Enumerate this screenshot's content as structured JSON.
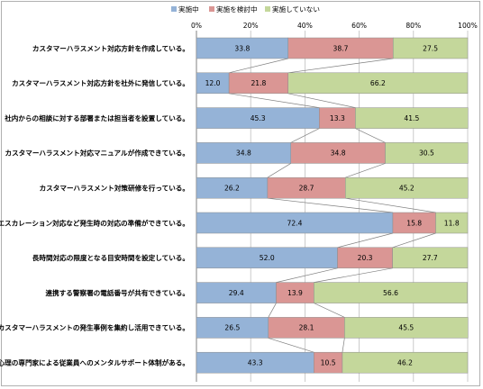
{
  "chart_data": {
    "type": "bar",
    "orientation": "horizontal",
    "stacked": "percent",
    "xlim": [
      0,
      100
    ],
    "x_ticks": [
      "0%",
      "20%",
      "40%",
      "60%",
      "80%",
      "100%"
    ],
    "legend_position": "top",
    "grid": true,
    "connector_lines": true,
    "categories": [
      "カスタマーハラスメント対応方針を作成している。",
      "カスタマーハラスメント対応方針を社外に発信している。",
      "社内からの相談に対する部署または担当者を設置している。",
      "カスタマーハラスメント対応マニュアルが作成できている。",
      "カスタマーハラスメント対策研修を行っている。",
      "エスカレーション対応など発生時の対応の準備ができている。",
      "長時間対応の限度となる目安時間を設定している。",
      "連携する警察署の電話番号が共有できている。",
      "カスタマーハラスメントの発生事例を集約し活用できている。",
      "心理の専門家による従業員へのメンタルサポート体制がある。"
    ],
    "series": [
      {
        "name": "実施中",
        "color": "#95b3d7",
        "values": [
          33.8,
          12.0,
          45.3,
          34.8,
          26.2,
          72.4,
          52.0,
          29.4,
          26.5,
          43.3
        ]
      },
      {
        "name": "実施を検討中",
        "color": "#da9694",
        "values": [
          38.7,
          21.8,
          13.3,
          34.8,
          28.7,
          15.8,
          20.3,
          13.9,
          28.1,
          10.5
        ]
      },
      {
        "name": "実施していない",
        "color": "#c4d79b",
        "values": [
          27.5,
          66.2,
          41.5,
          30.5,
          45.2,
          11.8,
          27.7,
          56.6,
          45.5,
          46.2
        ]
      }
    ]
  }
}
